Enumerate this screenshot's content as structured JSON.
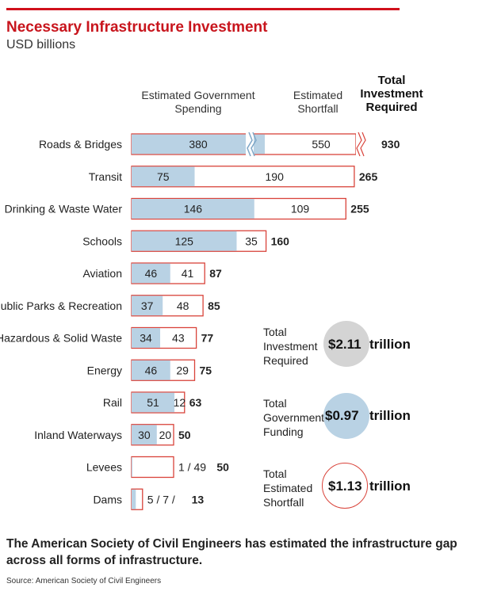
{
  "title": "Necessary Infrastructure Investment",
  "subtitle": "USD billions",
  "headers": {
    "gov": "Estimated Government\nSpending",
    "shortfall": "Estimated\nShortfall",
    "total": "Total\nInvestment\nRequired"
  },
  "colors": {
    "gov": "#b9d2e4",
    "shortfall_border": "#d9433a",
    "brand_red": "#d0101b",
    "total_gray": "#d4d4d4"
  },
  "chart_data": {
    "type": "bar",
    "stacked": true,
    "categories": [
      "Roads & Bridges",
      "Transit",
      "Drinking & Waste Water",
      "Schools",
      "Aviation",
      "Public Parks & Recreation",
      "Hazardous & Solid Waste",
      "Energy",
      "Rail",
      "Inland Waterways",
      "Levees",
      "Dams"
    ],
    "series": [
      {
        "name": "Estimated Government Spending",
        "values": [
          380,
          75,
          146,
          125,
          46,
          37,
          34,
          46,
          51,
          30,
          1,
          5
        ]
      },
      {
        "name": "Estimated Shortfall",
        "values": [
          550,
          190,
          109,
          35,
          41,
          48,
          43,
          29,
          12,
          20,
          49,
          7
        ]
      }
    ],
    "totals": [
      930,
      265,
      255,
      160,
      87,
      85,
      77,
      75,
      63,
      50,
      50,
      13
    ],
    "bar_labels": [
      "",
      "",
      "",
      "",
      "",
      "",
      "",
      "",
      "",
      "",
      "1 / 49",
      "5 / 7 /"
    ],
    "axis_break": "Roads & Bridges"
  },
  "summary": [
    {
      "label": "Total\nInvestment\nRequired",
      "value": "$2.11",
      "unit": "trillion",
      "style": "gray"
    },
    {
      "label": "Total\nGovernment\nFunding",
      "value": "$0.97",
      "unit": "trillion",
      "style": "blue"
    },
    {
      "label": "Total\nEstimated\nShortfall",
      "value": "$1.13",
      "unit": "trillion",
      "style": "red-outline"
    }
  ],
  "footer": "The American Society of Civil Engineers has estimated the infrastructure gap across all forms of infrastructure.",
  "source": "Source: American Society of Civil Engineers"
}
